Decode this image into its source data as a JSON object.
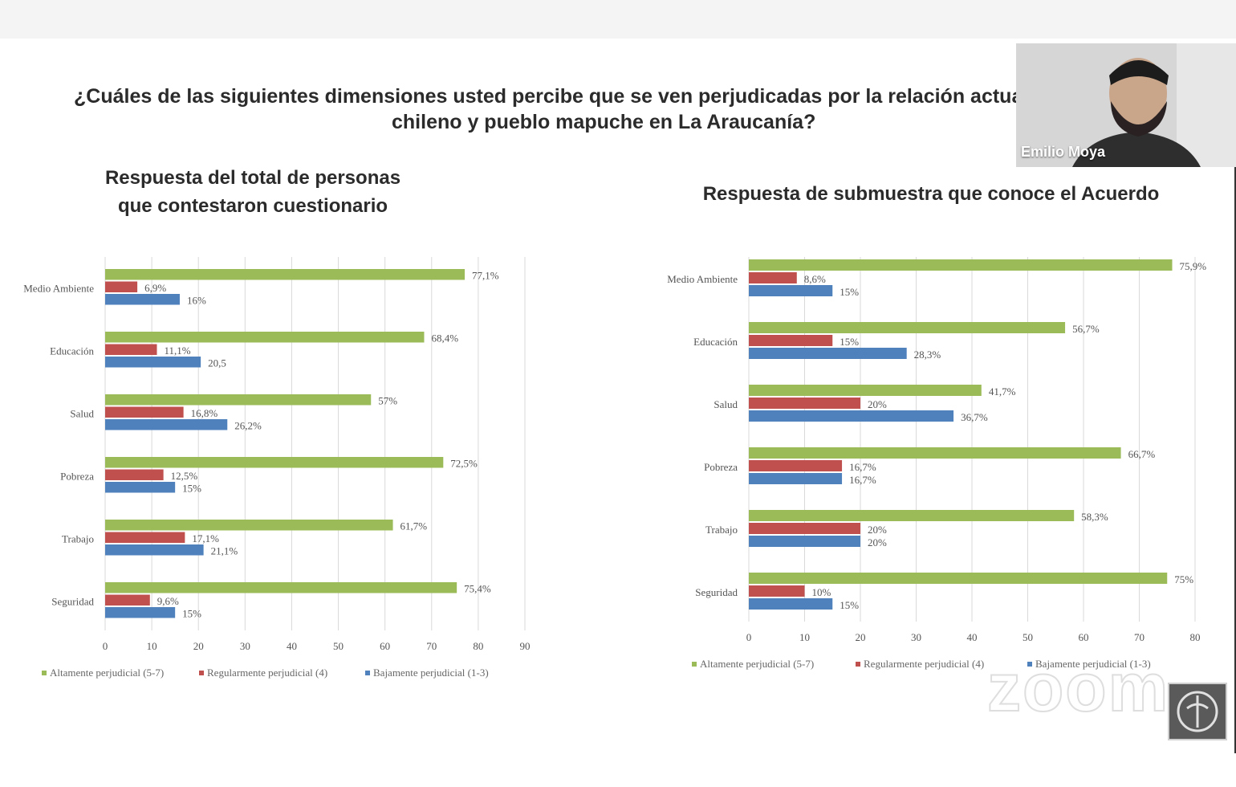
{
  "question": {
    "line1": "¿Cuáles de las siguientes dimensiones usted percibe que se ven perjudicadas por la relación actua",
    "line2": "chileno y pueblo mapuche en La Araucanía?"
  },
  "participant": {
    "name": "Emilio Moya"
  },
  "watermark": "zoom",
  "colors": {
    "high": "#9bbb59",
    "mid": "#c0504d",
    "low": "#4f81bd",
    "grid": "#d9d9d9"
  },
  "chart_data": [
    {
      "type": "bar",
      "orientation": "horizontal",
      "title_line1": "Respuesta del total de personas",
      "title_line2": "que contestaron cuestionario",
      "categories": [
        "Medio Ambiente",
        "Educación",
        "Salud",
        "Pobreza",
        "Trabajo",
        "Seguridad"
      ],
      "xlim": [
        0,
        90
      ],
      "xticks": [
        0,
        10,
        20,
        30,
        40,
        50,
        60,
        70,
        80,
        90
      ],
      "grid": true,
      "legend_position": "bottom",
      "series": [
        {
          "name": "Altamente perjudicial (5-7)",
          "values": [
            77.1,
            68.4,
            57,
            72.5,
            61.7,
            75.4
          ],
          "labels": [
            "77,1%",
            "68,4%",
            "57%",
            "72,5%",
            "61,7%",
            "75,4%"
          ]
        },
        {
          "name": "Regularmente perjudicial (4)",
          "values": [
            6.9,
            11.1,
            16.8,
            12.5,
            17.1,
            9.6
          ],
          "labels": [
            "6,9%",
            "11,1%",
            "16,8%",
            "12,5%",
            "17,1%",
            "9,6%"
          ]
        },
        {
          "name": "Bajamente perjudicial (1-3)",
          "values": [
            16,
            20.5,
            26.2,
            15,
            21.1,
            15
          ],
          "labels": [
            "16%",
            "20,5",
            "26,2%",
            "15%",
            "21,1%",
            "15%"
          ]
        }
      ]
    },
    {
      "type": "bar",
      "orientation": "horizontal",
      "title_line1": "Respuesta de submuestra que conoce el Acuerdo",
      "title_line2": "",
      "categories": [
        "Medio Ambiente",
        "Educación",
        "Salud",
        "Pobreza",
        "Trabajo",
        "Seguridad"
      ],
      "xlim": [
        0,
        80
      ],
      "xticks": [
        0,
        10,
        20,
        30,
        40,
        50,
        60,
        70,
        80
      ],
      "grid": true,
      "legend_position": "bottom",
      "series": [
        {
          "name": "Altamente perjudicial (5-7)",
          "values": [
            75.9,
            56.7,
            41.7,
            66.7,
            58.3,
            75
          ],
          "labels": [
            "75,9%",
            "56,7%",
            "41,7%",
            "66,7%",
            "58,3%",
            "75%"
          ]
        },
        {
          "name": "Regularmente perjudicial (4)",
          "values": [
            8.6,
            15,
            20,
            16.7,
            20,
            10
          ],
          "labels": [
            "8,6%",
            "15%",
            "20%",
            "16,7%",
            "20%",
            "10%"
          ]
        },
        {
          "name": "Bajamente perjudicial (1-3)",
          "values": [
            15,
            28.3,
            36.7,
            16.7,
            20,
            15
          ],
          "labels": [
            "15%",
            "28,3%",
            "36,7%",
            "16,7%",
            "20%",
            "15%"
          ]
        }
      ]
    }
  ]
}
